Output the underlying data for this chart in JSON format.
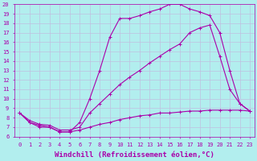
{
  "xlabel": "Windchill (Refroidissement éolien,°C)",
  "background_color": "#b2eeee",
  "grid_color": "#c0c0e0",
  "line_color": "#aa00aa",
  "xlim": [
    -0.5,
    23.5
  ],
  "ylim": [
    6,
    20
  ],
  "xticks": [
    0,
    1,
    2,
    3,
    4,
    5,
    6,
    7,
    8,
    9,
    10,
    11,
    12,
    13,
    14,
    15,
    16,
    17,
    18,
    19,
    20,
    21,
    22,
    23
  ],
  "yticks": [
    6,
    7,
    8,
    9,
    10,
    11,
    12,
    13,
    14,
    15,
    16,
    17,
    18,
    19,
    20
  ],
  "curve1_x": [
    0,
    1,
    2,
    3,
    4,
    5,
    6,
    7,
    8,
    9,
    10,
    11,
    12,
    13,
    14,
    15,
    16,
    17,
    18,
    19,
    20,
    21,
    22,
    23
  ],
  "curve1_y": [
    8.5,
    7.5,
    7.2,
    7.0,
    6.5,
    6.5,
    7.5,
    10.0,
    13.0,
    16.5,
    18.5,
    18.5,
    18.8,
    19.2,
    19.5,
    20.0,
    20.0,
    19.5,
    19.2,
    18.8,
    17.0,
    13.0,
    9.5,
    8.7
  ],
  "curve2_x": [
    0,
    1,
    2,
    3,
    4,
    5,
    6,
    7,
    8,
    9,
    10,
    11,
    12,
    13,
    14,
    15,
    16,
    17,
    18,
    19,
    20,
    21,
    22,
    23
  ],
  "curve2_y": [
    8.5,
    7.7,
    7.3,
    7.2,
    6.7,
    6.7,
    7.0,
    8.5,
    9.5,
    10.5,
    11.5,
    12.3,
    13.0,
    13.8,
    14.5,
    15.2,
    15.8,
    17.0,
    17.5,
    17.8,
    14.5,
    11.0,
    9.5,
    8.7
  ],
  "curve3_x": [
    0,
    1,
    2,
    3,
    4,
    5,
    6,
    7,
    8,
    9,
    10,
    11,
    12,
    13,
    14,
    15,
    16,
    17,
    18,
    19,
    20,
    21,
    22,
    23
  ],
  "curve3_y": [
    8.5,
    7.5,
    7.0,
    7.0,
    6.5,
    6.5,
    6.7,
    7.0,
    7.3,
    7.5,
    7.8,
    8.0,
    8.2,
    8.3,
    8.5,
    8.5,
    8.6,
    8.7,
    8.7,
    8.8,
    8.8,
    8.8,
    8.8,
    8.7
  ],
  "font_family": "monospace",
  "tick_fontsize": 5.0,
  "xlabel_fontsize": 6.5
}
